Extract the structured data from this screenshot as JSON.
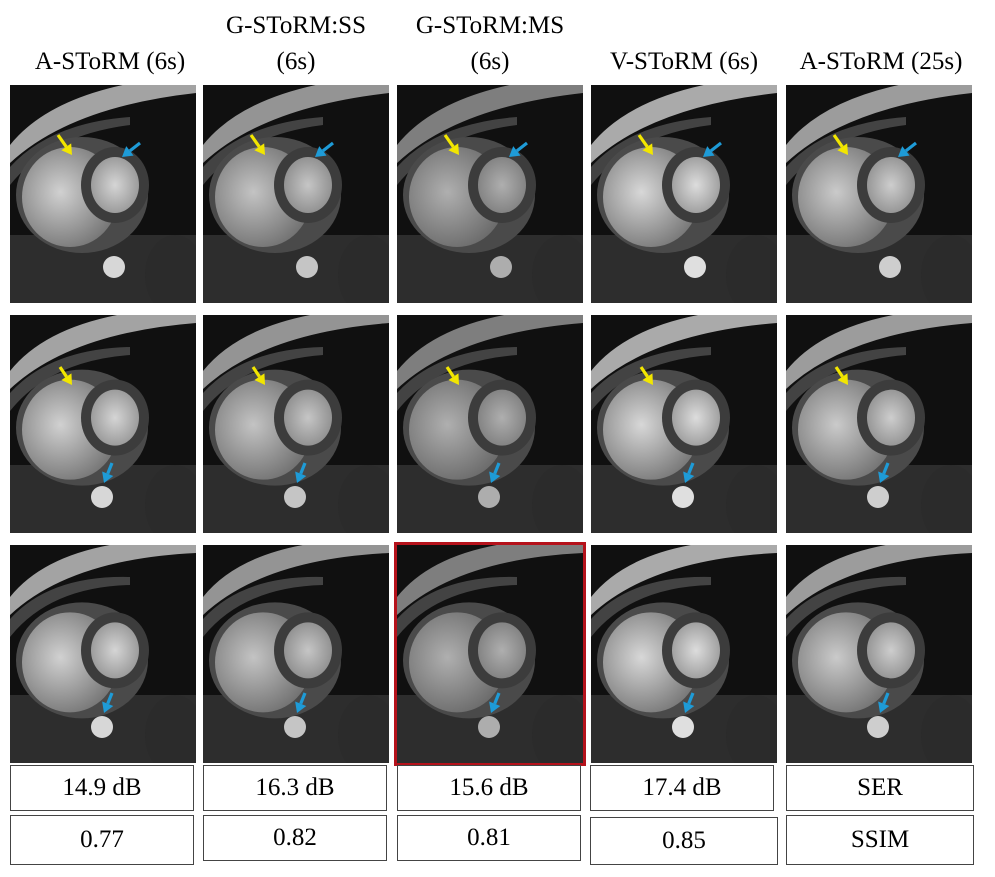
{
  "columns": [
    {
      "title_lines": [
        "",
        "A-SToRM (6s)"
      ],
      "ser": "14.9 dB",
      "ssim": "0.77"
    },
    {
      "title_lines": [
        "G-SToRM:SS",
        "(6s)"
      ],
      "ser": "16.3 dB",
      "ssim": "0.82"
    },
    {
      "title_lines": [
        "G-SToRM:MS",
        "(6s)"
      ],
      "ser": "15.6 dB",
      "ssim": "0.81"
    },
    {
      "title_lines": [
        "",
        "V-SToRM (6s)"
      ],
      "ser": "17.4 dB",
      "ssim": "0.85"
    },
    {
      "title_lines": [
        "",
        "A-SToRM (25s)"
      ],
      "ser": "SER",
      "ssim": "SSIM"
    }
  ],
  "rows": 3,
  "highlight": {
    "row": 3,
    "column": 3,
    "color": "#b5121b"
  },
  "arrow_colors": {
    "yellow": "#f2e600",
    "blue": "#1e9bd7"
  }
}
